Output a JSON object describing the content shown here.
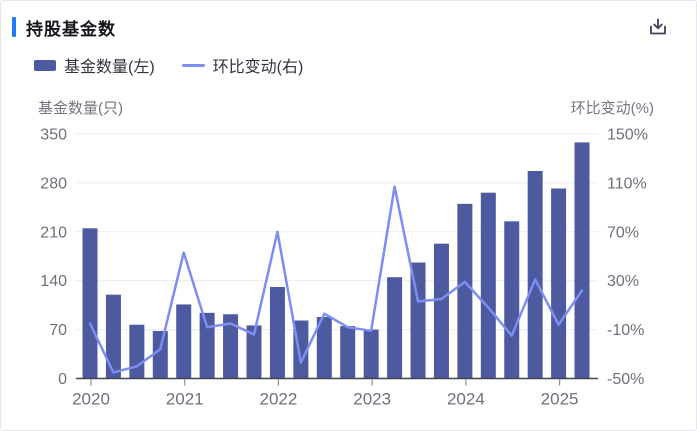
{
  "header": {
    "title": "持股基金数"
  },
  "icons": {
    "download": "download-icon"
  },
  "legend": {
    "items": [
      {
        "label": "基金数量(左)",
        "swatch": "bar"
      },
      {
        "label": "环比变动(右)",
        "swatch": "line"
      }
    ]
  },
  "axes": {
    "left_title": "基金数量(只)",
    "right_title": "环比变动(%)"
  },
  "colors": {
    "bar": "#4d5aa0",
    "line": "#7d8ef2",
    "accent": "#1f7cf9",
    "grid": "#e9ebf4",
    "baseline": "#44444e",
    "tick_text": "#6f6f7c",
    "axis_title_text": "#75757f",
    "icon": "#3f3f5a"
  },
  "chart_data": {
    "type": "bar+line",
    "title": "持股基金数",
    "categories": [
      "2020Q1",
      "2020Q2",
      "2020Q3",
      "2020Q4",
      "2021Q1",
      "2021Q2",
      "2021Q3",
      "2021Q4",
      "2022Q1",
      "2022Q2",
      "2022Q3",
      "2022Q4",
      "2023Q1",
      "2023Q2",
      "2023Q3",
      "2023Q4",
      "2024Q1",
      "2024Q2",
      "2024Q3",
      "2024Q4",
      "2025Q1",
      "2025Q2"
    ],
    "series": [
      {
        "name": "基金数量(左)",
        "type": "bar",
        "axis": "left",
        "values": [
          215,
          120,
          77,
          68,
          106,
          94,
          92,
          76,
          131,
          83,
          88,
          75,
          70,
          145,
          166,
          193,
          250,
          266,
          225,
          297,
          272,
          338
        ]
      },
      {
        "name": "环比变动(右)",
        "type": "line",
        "axis": "right",
        "unit": "%",
        "values": [
          -5,
          -45,
          -40,
          -26,
          53,
          -8,
          -5,
          -14,
          70,
          -37,
          3,
          -8,
          -11,
          107,
          13,
          15,
          29,
          8,
          -15,
          31,
          -6,
          22
        ]
      }
    ],
    "x_year_labels": {
      "labels": [
        "2020",
        "2021",
        "2022",
        "2023",
        "2024",
        "2025"
      ],
      "at_category_index": [
        0,
        4,
        8,
        12,
        16,
        20
      ]
    },
    "left_axis": {
      "title": "基金数量(只)",
      "ticks": [
        0,
        70,
        140,
        210,
        280,
        350
      ],
      "range": [
        0,
        350
      ]
    },
    "right_axis": {
      "title": "环比变动(%)",
      "tick_labels": [
        "-50%",
        "-10%",
        "30%",
        "70%",
        "110%",
        "150%"
      ],
      "ticks_pct": [
        -50,
        -10,
        30,
        70,
        110,
        150
      ],
      "range": [
        -50,
        150
      ]
    },
    "grid": true,
    "legend_position": "top-left"
  }
}
